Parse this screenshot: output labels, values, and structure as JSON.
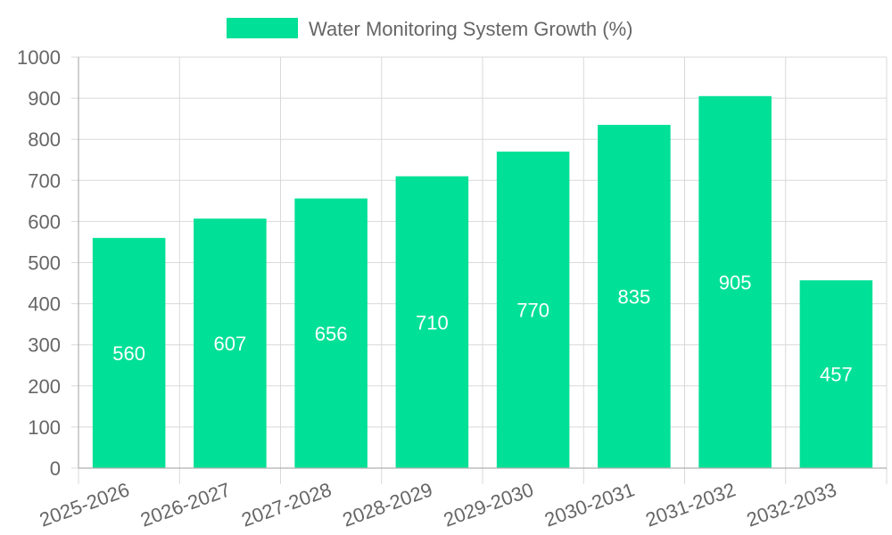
{
  "chart_data": {
    "type": "bar",
    "title": "",
    "xlabel": "",
    "ylabel": "",
    "categories": [
      "2025-2026",
      "2026-2027",
      "2027-2028",
      "2028-2029",
      "2029-2030",
      "2030-2031",
      "2031-2032",
      "2032-2033"
    ],
    "series": [
      {
        "name": "Water Monitoring System Growth (%)",
        "values": [
          560,
          607,
          656,
          710,
          770,
          835,
          905,
          457
        ],
        "color": "#00e096"
      }
    ],
    "ylim": [
      0,
      1000
    ],
    "yticks": [
      0,
      100,
      200,
      300,
      400,
      500,
      600,
      700,
      800,
      900,
      1000
    ],
    "grid": true,
    "legend_position": "top",
    "data_labels": true
  }
}
